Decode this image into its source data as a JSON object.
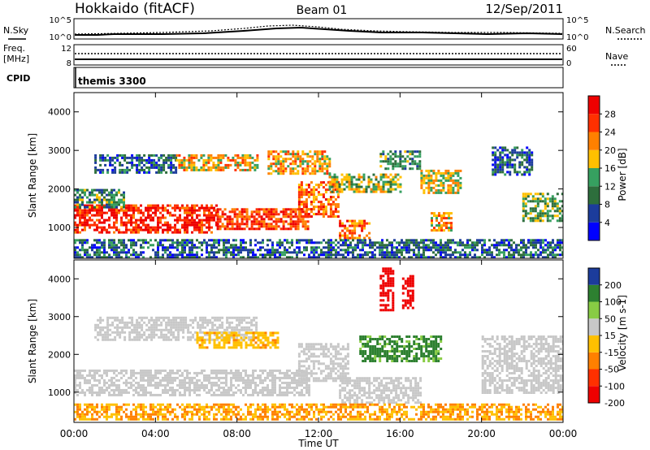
{
  "header": {
    "station": "Hokkaido (fitACF)",
    "beam": "Beam 01",
    "date": "12/Sep/2011"
  },
  "noise_panel": {
    "left_label": "N.Sky",
    "right_label": "N.Search",
    "left_ticks": [
      "10^5",
      "10^0"
    ],
    "right_ticks": [
      "10^5",
      "10^0"
    ]
  },
  "freq_panel": {
    "label_line1": "Freq.",
    "label_line2": "[MHz]",
    "left_ticks": [
      "12",
      "8"
    ],
    "right_label": "Nave",
    "right_ticks": [
      "60",
      "0"
    ]
  },
  "cpid_panel": {
    "label": "CPID",
    "mode": "themis 3300"
  },
  "x_axis": {
    "label": "Time UT",
    "ticks": [
      "00:00",
      "04:00",
      "08:00",
      "12:00",
      "16:00",
      "20:00",
      "00:00"
    ]
  },
  "colors": {
    "power": [
      "#0000ff",
      "#1c3c9c",
      "#2d6e3c",
      "#36a060",
      "#ffc000",
      "#ff8000",
      "#ff3000",
      "#ee0000"
    ],
    "velocity": [
      "#ee0000",
      "#ff3000",
      "#ff8000",
      "#ffc000",
      "#c8c8c8",
      "#88cc44",
      "#2d8030",
      "#1c3c9c"
    ]
  },
  "chart_data": [
    {
      "type": "heatmap",
      "title": "Power",
      "xlabel": "Time UT",
      "ylabel": "Slant Range [km]",
      "xlim": [
        0,
        24
      ],
      "ylim": [
        200,
        4500
      ],
      "yticks": [
        "1000",
        "2000",
        "3000",
        "4000"
      ],
      "colorbar": {
        "label": "Power [dB]",
        "ticks": [
          "28",
          "24",
          "20",
          "16",
          "12",
          "8",
          "4"
        ]
      },
      "features": [
        {
          "t0": 0.0,
          "t1": 7.0,
          "r0": 900,
          "r1": 1600,
          "level": 28
        },
        {
          "t0": 0.0,
          "t1": 2.5,
          "r0": 1500,
          "r1": 2000,
          "level": 12
        },
        {
          "t0": 1.0,
          "t1": 5.0,
          "r0": 2400,
          "r1": 2900,
          "level": 8
        },
        {
          "t0": 5.0,
          "t1": 9.0,
          "r0": 2500,
          "r1": 2900,
          "level": 20
        },
        {
          "t0": 7.0,
          "t1": 11.5,
          "r0": 950,
          "r1": 1500,
          "level": 26
        },
        {
          "t0": 11.0,
          "t1": 13.0,
          "r0": 1300,
          "r1": 2200,
          "level": 24
        },
        {
          "t0": 9.5,
          "t1": 12.5,
          "r0": 2400,
          "r1": 3000,
          "level": 20
        },
        {
          "t0": 13.0,
          "t1": 14.5,
          "r0": 700,
          "r1": 1200,
          "level": 24
        },
        {
          "t0": 12.5,
          "t1": 16.0,
          "r0": 1900,
          "r1": 2400,
          "level": 16
        },
        {
          "t0": 15.0,
          "t1": 17.0,
          "r0": 2500,
          "r1": 3000,
          "level": 12
        },
        {
          "t0": 17.0,
          "t1": 19.0,
          "r0": 1900,
          "r1": 2500,
          "level": 18
        },
        {
          "t0": 17.5,
          "t1": 18.5,
          "r0": 900,
          "r1": 1400,
          "level": 20
        },
        {
          "t0": 20.5,
          "t1": 22.5,
          "r0": 2400,
          "r1": 3100,
          "level": 8
        },
        {
          "t0": 22.0,
          "t1": 24.0,
          "r0": 1200,
          "r1": 1900,
          "level": 14
        },
        {
          "t0": 0.0,
          "t1": 24.0,
          "r0": 200,
          "r1": 700,
          "level": 8
        }
      ]
    },
    {
      "type": "heatmap",
      "title": "Velocity",
      "xlabel": "Time UT",
      "ylabel": "Slant Range [km]",
      "xlim": [
        0,
        24
      ],
      "ylim": [
        200,
        4500
      ],
      "yticks": [
        "1000",
        "2000",
        "3000",
        "4000"
      ],
      "colorbar": {
        "label": "Velocity [m s-1]",
        "ticks": [
          "200",
          "100",
          "50",
          "15",
          "-15",
          "-50",
          "-100",
          "-200"
        ]
      },
      "features": [
        {
          "t0": 0.0,
          "t1": 11.5,
          "r0": 900,
          "r1": 1600,
          "level": 0
        },
        {
          "t0": 1.0,
          "t1": 9.0,
          "r0": 2400,
          "r1": 3000,
          "level": 0
        },
        {
          "t0": 11.0,
          "t1": 13.5,
          "r0": 1300,
          "r1": 2300,
          "level": 0
        },
        {
          "t0": 13.0,
          "t1": 17.0,
          "r0": 700,
          "r1": 1400,
          "level": 0
        },
        {
          "t0": 6.0,
          "t1": 10.0,
          "r0": 2200,
          "r1": 2600,
          "level": -40
        },
        {
          "t0": 14.0,
          "t1": 18.0,
          "r0": 1800,
          "r1": 2500,
          "level": 60
        },
        {
          "t0": 15.0,
          "t1": 15.6,
          "r0": 3200,
          "r1": 4300,
          "level": -200
        },
        {
          "t0": 16.1,
          "t1": 16.6,
          "r0": 3200,
          "r1": 4100,
          "level": -200
        },
        {
          "t0": 20.0,
          "t1": 24.0,
          "r0": 1000,
          "r1": 2500,
          "level": 0
        },
        {
          "t0": 0.0,
          "t1": 24.0,
          "r0": 300,
          "r1": 700,
          "level": -50
        }
      ]
    }
  ]
}
